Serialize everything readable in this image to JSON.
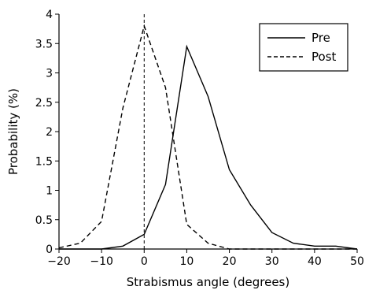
{
  "chart_data": {
    "type": "line",
    "xlabel": "Strabismus angle (degrees)",
    "ylabel": "Probability (%)",
    "xlim": [
      -20,
      50
    ],
    "ylim": [
      0,
      4
    ],
    "xticks": [
      -20,
      -10,
      0,
      10,
      20,
      30,
      40,
      50
    ],
    "yticks": [
      0,
      0.5,
      1,
      1.5,
      2,
      2.5,
      3,
      3.5,
      4
    ],
    "xtick_labels": [
      "−20",
      "−10",
      "0",
      "10",
      "20",
      "30",
      "40",
      "50"
    ],
    "ytick_labels": [
      "0",
      "0.5",
      "1",
      "1.5",
      "2",
      "2.5",
      "3",
      "3.5",
      "4"
    ],
    "reference_line_x": 0,
    "legend": {
      "position": "top-right"
    },
    "series": [
      {
        "name": "Pre",
        "style": "solid",
        "x": [
          -20,
          -15,
          -10,
          -5,
          0,
          5,
          10,
          15,
          20,
          25,
          30,
          35,
          40,
          45,
          50
        ],
        "y": [
          0,
          0,
          0,
          0.05,
          0.25,
          1.1,
          3.45,
          2.6,
          1.35,
          0.75,
          0.28,
          0.1,
          0.05,
          0.05,
          0
        ]
      },
      {
        "name": "Post",
        "style": "dashed",
        "x": [
          -20,
          -15,
          -10,
          -5,
          0,
          5,
          10,
          15,
          20,
          25,
          30,
          35,
          40,
          45,
          50
        ],
        "y": [
          0.02,
          0.1,
          0.47,
          2.4,
          3.8,
          2.75,
          0.42,
          0.1,
          0,
          0,
          0,
          0,
          0,
          0,
          0
        ]
      }
    ]
  }
}
